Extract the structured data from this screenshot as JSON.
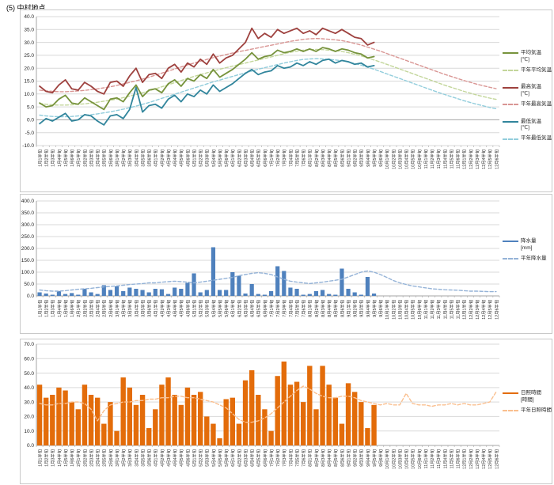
{
  "page": {
    "title": "(5) 中村地点"
  },
  "x_labels": [
    "1月1半旬",
    "1月2半旬",
    "1月3半旬",
    "1月4半旬",
    "1月5半旬",
    "1月6半旬",
    "2月1半旬",
    "2月2半旬",
    "2月3半旬",
    "2月4半旬",
    "2月5半旬",
    "2月6半旬",
    "3月1半旬",
    "3月2半旬",
    "3月3半旬",
    "3月4半旬",
    "3月5半旬",
    "3月6半旬",
    "4月1半旬",
    "4月2半旬",
    "4月3半旬",
    "4月4半旬",
    "4月5半旬",
    "4月6半旬",
    "5月1半旬",
    "5月2半旬",
    "5月3半旬",
    "5月4半旬",
    "5月5半旬",
    "5月6半旬",
    "6月1半旬",
    "6月2半旬",
    "6月3半旬",
    "6月4半旬",
    "6月5半旬",
    "6月6半旬",
    "7月1半旬",
    "7月2半旬",
    "7月3半旬",
    "7月4半旬",
    "7月5半旬",
    "7月6半旬",
    "8月1半旬",
    "8月2半旬",
    "8月3半旬",
    "8月4半旬",
    "8月5半旬",
    "8月6半旬",
    "9月1半旬",
    "9月2半旬",
    "9月3半旬",
    "9月4半旬",
    "9月5半旬",
    "9月6半旬",
    "10月1半旬",
    "10月2半旬",
    "10月3半旬",
    "10月4半旬",
    "10月5半旬",
    "10月6半旬",
    "11月1半旬",
    "11月2半旬",
    "11月3半旬",
    "11月4半旬",
    "11月5半旬",
    "11月6半旬",
    "12月1半旬",
    "12月2半旬",
    "12月3半旬",
    "12月4半旬",
    "12月5半旬",
    "12月6半旬"
  ],
  "chart_data": [
    {
      "id": "temperature",
      "type": "line",
      "title": "",
      "xlabel": "",
      "ylabel": "",
      "ylim": [
        -10,
        40
      ],
      "ystep": 5,
      "grid": true,
      "legend_position": "right",
      "series": [
        {
          "name": "平均気温",
          "legend_lines": [
            "平均気温",
            "[℃]"
          ],
          "color": "#77933C",
          "style": "solid",
          "draw": "line",
          "gap_after": false,
          "values": [
            6.5,
            5.0,
            5.5,
            8.0,
            9.5,
            6.5,
            6.0,
            8.5,
            7.0,
            5.5,
            4.0,
            8.0,
            8.5,
            7.0,
            10.5,
            13.5,
            9.0,
            11.5,
            12.0,
            10.5,
            14.0,
            15.5,
            13.0,
            16.0,
            15.0,
            17.5,
            16.0,
            19.5,
            16.5,
            18.0,
            19.5,
            21.5,
            23.5,
            26.0,
            23.5,
            24.5,
            25.0,
            27.0,
            26.0,
            26.5,
            27.5,
            26.5,
            27.5,
            26.5,
            28.0,
            27.5,
            26.5,
            27.5,
            27.0,
            26.0,
            25.5,
            24.0,
            24.5
          ]
        },
        {
          "name": "平年平均気温",
          "legend_lines": [
            "平年平均気温"
          ],
          "color": "#C3D69B",
          "style": "dashed",
          "draw": "line",
          "gap_after": true,
          "values": [
            6.3,
            6.0,
            5.8,
            5.7,
            5.7,
            5.8,
            6.0,
            6.2,
            6.5,
            6.8,
            7.2,
            7.6,
            8.0,
            8.6,
            9.2,
            9.8,
            10.5,
            11.2,
            12.0,
            12.8,
            13.6,
            14.4,
            15.2,
            16.0,
            16.8,
            17.5,
            18.2,
            18.9,
            19.6,
            20.2,
            20.8,
            21.4,
            22.0,
            22.6,
            23.2,
            23.8,
            24.4,
            25.0,
            25.6,
            26.2,
            26.6,
            27.0,
            27.2,
            27.3,
            27.2,
            27.0,
            26.8,
            26.5,
            26.0,
            25.4,
            24.8,
            24.0,
            23.2,
            22.4,
            21.5,
            20.6,
            19.7,
            18.8,
            17.9,
            17.0,
            16.1,
            15.2,
            14.3,
            13.4,
            12.6,
            11.8,
            11.0,
            10.3,
            9.6,
            9.0,
            8.4,
            7.9
          ]
        },
        {
          "name": "最高気温",
          "legend_lines": [
            "最高気温",
            "[℃]"
          ],
          "color": "#9E413E",
          "style": "solid",
          "draw": "line",
          "gap_after": false,
          "values": [
            13.0,
            11.0,
            10.5,
            13.5,
            15.5,
            12.0,
            11.5,
            14.5,
            13.0,
            11.0,
            10.0,
            14.5,
            15.0,
            13.0,
            17.0,
            20.0,
            14.5,
            17.5,
            18.0,
            16.0,
            20.0,
            21.5,
            18.5,
            22.0,
            20.5,
            23.5,
            21.5,
            25.5,
            22.0,
            24.0,
            25.0,
            27.5,
            30.0,
            35.5,
            31.5,
            33.5,
            32.0,
            35.0,
            33.5,
            34.5,
            35.5,
            33.5,
            34.5,
            33.0,
            35.5,
            34.5,
            33.5,
            35.0,
            33.5,
            32.0,
            31.5,
            29.0,
            30.0
          ]
        },
        {
          "name": "平年最高気温",
          "legend_lines": [
            "平年最高気温"
          ],
          "color": "#D99694",
          "style": "dashed",
          "draw": "line",
          "gap_after": true,
          "values": [
            11.5,
            11.2,
            11.0,
            10.9,
            10.9,
            11.0,
            11.2,
            11.4,
            11.7,
            12.0,
            12.4,
            12.8,
            13.3,
            13.9,
            14.5,
            15.1,
            15.8,
            16.5,
            17.3,
            18.1,
            18.9,
            19.7,
            20.5,
            21.3,
            22.0,
            22.7,
            23.4,
            24.1,
            24.7,
            25.3,
            25.9,
            26.4,
            26.9,
            27.4,
            27.9,
            28.4,
            28.9,
            29.4,
            29.9,
            30.4,
            30.8,
            31.2,
            31.4,
            31.5,
            31.4,
            31.2,
            31.0,
            30.7,
            30.2,
            29.6,
            29.0,
            28.2,
            27.4,
            26.6,
            25.7,
            24.8,
            23.9,
            23.0,
            22.1,
            21.2,
            20.3,
            19.4,
            18.5,
            17.6,
            16.8,
            16.0,
            15.2,
            14.5,
            13.8,
            13.2,
            12.6,
            12.1
          ]
        },
        {
          "name": "最低気温",
          "legend_lines": [
            "最低気温",
            "[℃]"
          ],
          "color": "#31859C",
          "style": "solid",
          "draw": "line",
          "gap_after": false,
          "values": [
            -1.5,
            0.5,
            -0.5,
            1.0,
            2.5,
            -0.5,
            0.0,
            2.0,
            1.5,
            -0.5,
            -2.0,
            1.5,
            2.0,
            0.5,
            4.0,
            12.5,
            3.0,
            5.5,
            6.0,
            4.5,
            8.0,
            9.5,
            7.0,
            10.0,
            9.0,
            11.5,
            10.0,
            13.5,
            11.0,
            12.5,
            14.0,
            16.0,
            18.0,
            19.5,
            17.5,
            18.5,
            19.0,
            21.0,
            20.0,
            20.5,
            22.0,
            21.0,
            22.5,
            21.5,
            23.0,
            23.5,
            22.0,
            23.0,
            22.5,
            21.5,
            22.0,
            20.5,
            21.0
          ]
        },
        {
          "name": "平年最低気温",
          "legend_lines": [
            "平年最低気温"
          ],
          "color": "#92CDDC",
          "style": "dashed",
          "draw": "line",
          "gap_after": false,
          "values": [
            1.8,
            1.5,
            1.3,
            1.2,
            1.2,
            1.3,
            1.5,
            1.7,
            2.0,
            2.3,
            2.7,
            3.1,
            3.6,
            4.1,
            4.7,
            5.3,
            6.0,
            6.7,
            7.5,
            8.3,
            9.1,
            9.9,
            10.7,
            11.5,
            12.3,
            13.1,
            13.9,
            14.7,
            15.4,
            16.1,
            16.8,
            17.5,
            18.2,
            18.9,
            19.6,
            20.2,
            20.8,
            21.4,
            22.0,
            22.5,
            23.0,
            23.4,
            23.6,
            23.7,
            23.6,
            23.4,
            23.2,
            22.9,
            22.4,
            21.8,
            21.2,
            20.4,
            19.6,
            18.7,
            17.8,
            16.9,
            16.0,
            15.1,
            14.2,
            13.3,
            12.4,
            11.5,
            10.6,
            9.8,
            9.0,
            8.2,
            7.4,
            6.7,
            6.0,
            5.4,
            4.8,
            4.3
          ]
        }
      ]
    },
    {
      "id": "precipitation",
      "type": "bar",
      "title": "",
      "xlabel": "",
      "ylabel": "",
      "ylim": [
        0,
        400
      ],
      "ystep": 50,
      "grid": true,
      "legend_position": "right",
      "series": [
        {
          "name": "降水量",
          "legend_lines": [
            "降水量",
            "[mm]"
          ],
          "color": "#4F81BD",
          "style": "solid",
          "draw": "bar",
          "gap_after": false,
          "values": [
            15,
            10,
            5,
            20,
            8,
            12,
            5,
            30,
            15,
            8,
            45,
            25,
            40,
            20,
            35,
            30,
            25,
            15,
            30,
            28,
            8,
            35,
            30,
            55,
            95,
            15,
            25,
            205,
            25,
            25,
            100,
            85,
            10,
            50,
            8,
            5,
            20,
            125,
            105,
            35,
            30,
            5,
            8,
            20,
            25,
            8,
            5,
            115,
            30,
            15,
            5,
            80,
            10
          ]
        },
        {
          "name": "平年降水量",
          "legend_lines": [
            "平年降水量"
          ],
          "color": "#95B3D7",
          "style": "dashed",
          "draw": "line",
          "gap_after": false,
          "values": [
            25,
            22,
            20,
            20,
            22,
            25,
            28,
            30,
            32,
            35,
            38,
            40,
            42,
            45,
            48,
            50,
            52,
            55,
            55,
            58,
            60,
            62,
            60,
            58,
            55,
            58,
            62,
            66,
            70,
            74,
            78,
            85,
            90,
            95,
            98,
            95,
            90,
            80,
            70,
            62,
            58,
            55,
            52,
            55,
            58,
            62,
            66,
            70,
            80,
            90,
            100,
            105,
            100,
            90,
            78,
            65,
            55,
            48,
            42,
            38,
            34,
            30,
            28,
            26,
            25,
            24,
            22,
            20,
            20,
            19,
            18,
            18
          ]
        }
      ]
    },
    {
      "id": "sunshine",
      "type": "bar",
      "title": "",
      "xlabel": "",
      "ylabel": "",
      "ylim": [
        0,
        70
      ],
      "ystep": 10,
      "grid": true,
      "legend_position": "right",
      "series": [
        {
          "name": "日照時間",
          "legend_lines": [
            "日照時間",
            "[時間]"
          ],
          "color": "#E36C0A",
          "style": "solid",
          "draw": "bar",
          "gap_after": false,
          "values": [
            42,
            33,
            35,
            40,
            38,
            30,
            25,
            42,
            35,
            33,
            15,
            30,
            10,
            47,
            40,
            28,
            35,
            12,
            25,
            42,
            47,
            35,
            28,
            40,
            35,
            37,
            20,
            15,
            5,
            32,
            33,
            15,
            45,
            52,
            35,
            25,
            10,
            48,
            58,
            42,
            44,
            30,
            55,
            25,
            55,
            42,
            33,
            15,
            43,
            37,
            30,
            12,
            28
          ]
        },
        {
          "name": "平年日照時間",
          "legend_lines": [
            "平年日照時間"
          ],
          "color": "#FABF8F",
          "style": "dashed",
          "draw": "line",
          "gap_after": false,
          "values": [
            29,
            28,
            28,
            29,
            29,
            30,
            30,
            29,
            25,
            17,
            24,
            28,
            29,
            30,
            30,
            31,
            31,
            32,
            32,
            33,
            33,
            34,
            34,
            33,
            33,
            32,
            31,
            30,
            28,
            26,
            22,
            18,
            16,
            16,
            17,
            19,
            22,
            26,
            30,
            34,
            38,
            41,
            39,
            36,
            34,
            33,
            33,
            34,
            34,
            33,
            31,
            30,
            29,
            28,
            29,
            28,
            28,
            36,
            29,
            28,
            28,
            27,
            28,
            28,
            29,
            28,
            29,
            28,
            28,
            29,
            30,
            37
          ]
        }
      ]
    }
  ],
  "layout_labels": {
    "chart1_name": "temperature-chart",
    "chart2_name": "precipitation-chart",
    "chart3_name": "sunshine-chart"
  }
}
